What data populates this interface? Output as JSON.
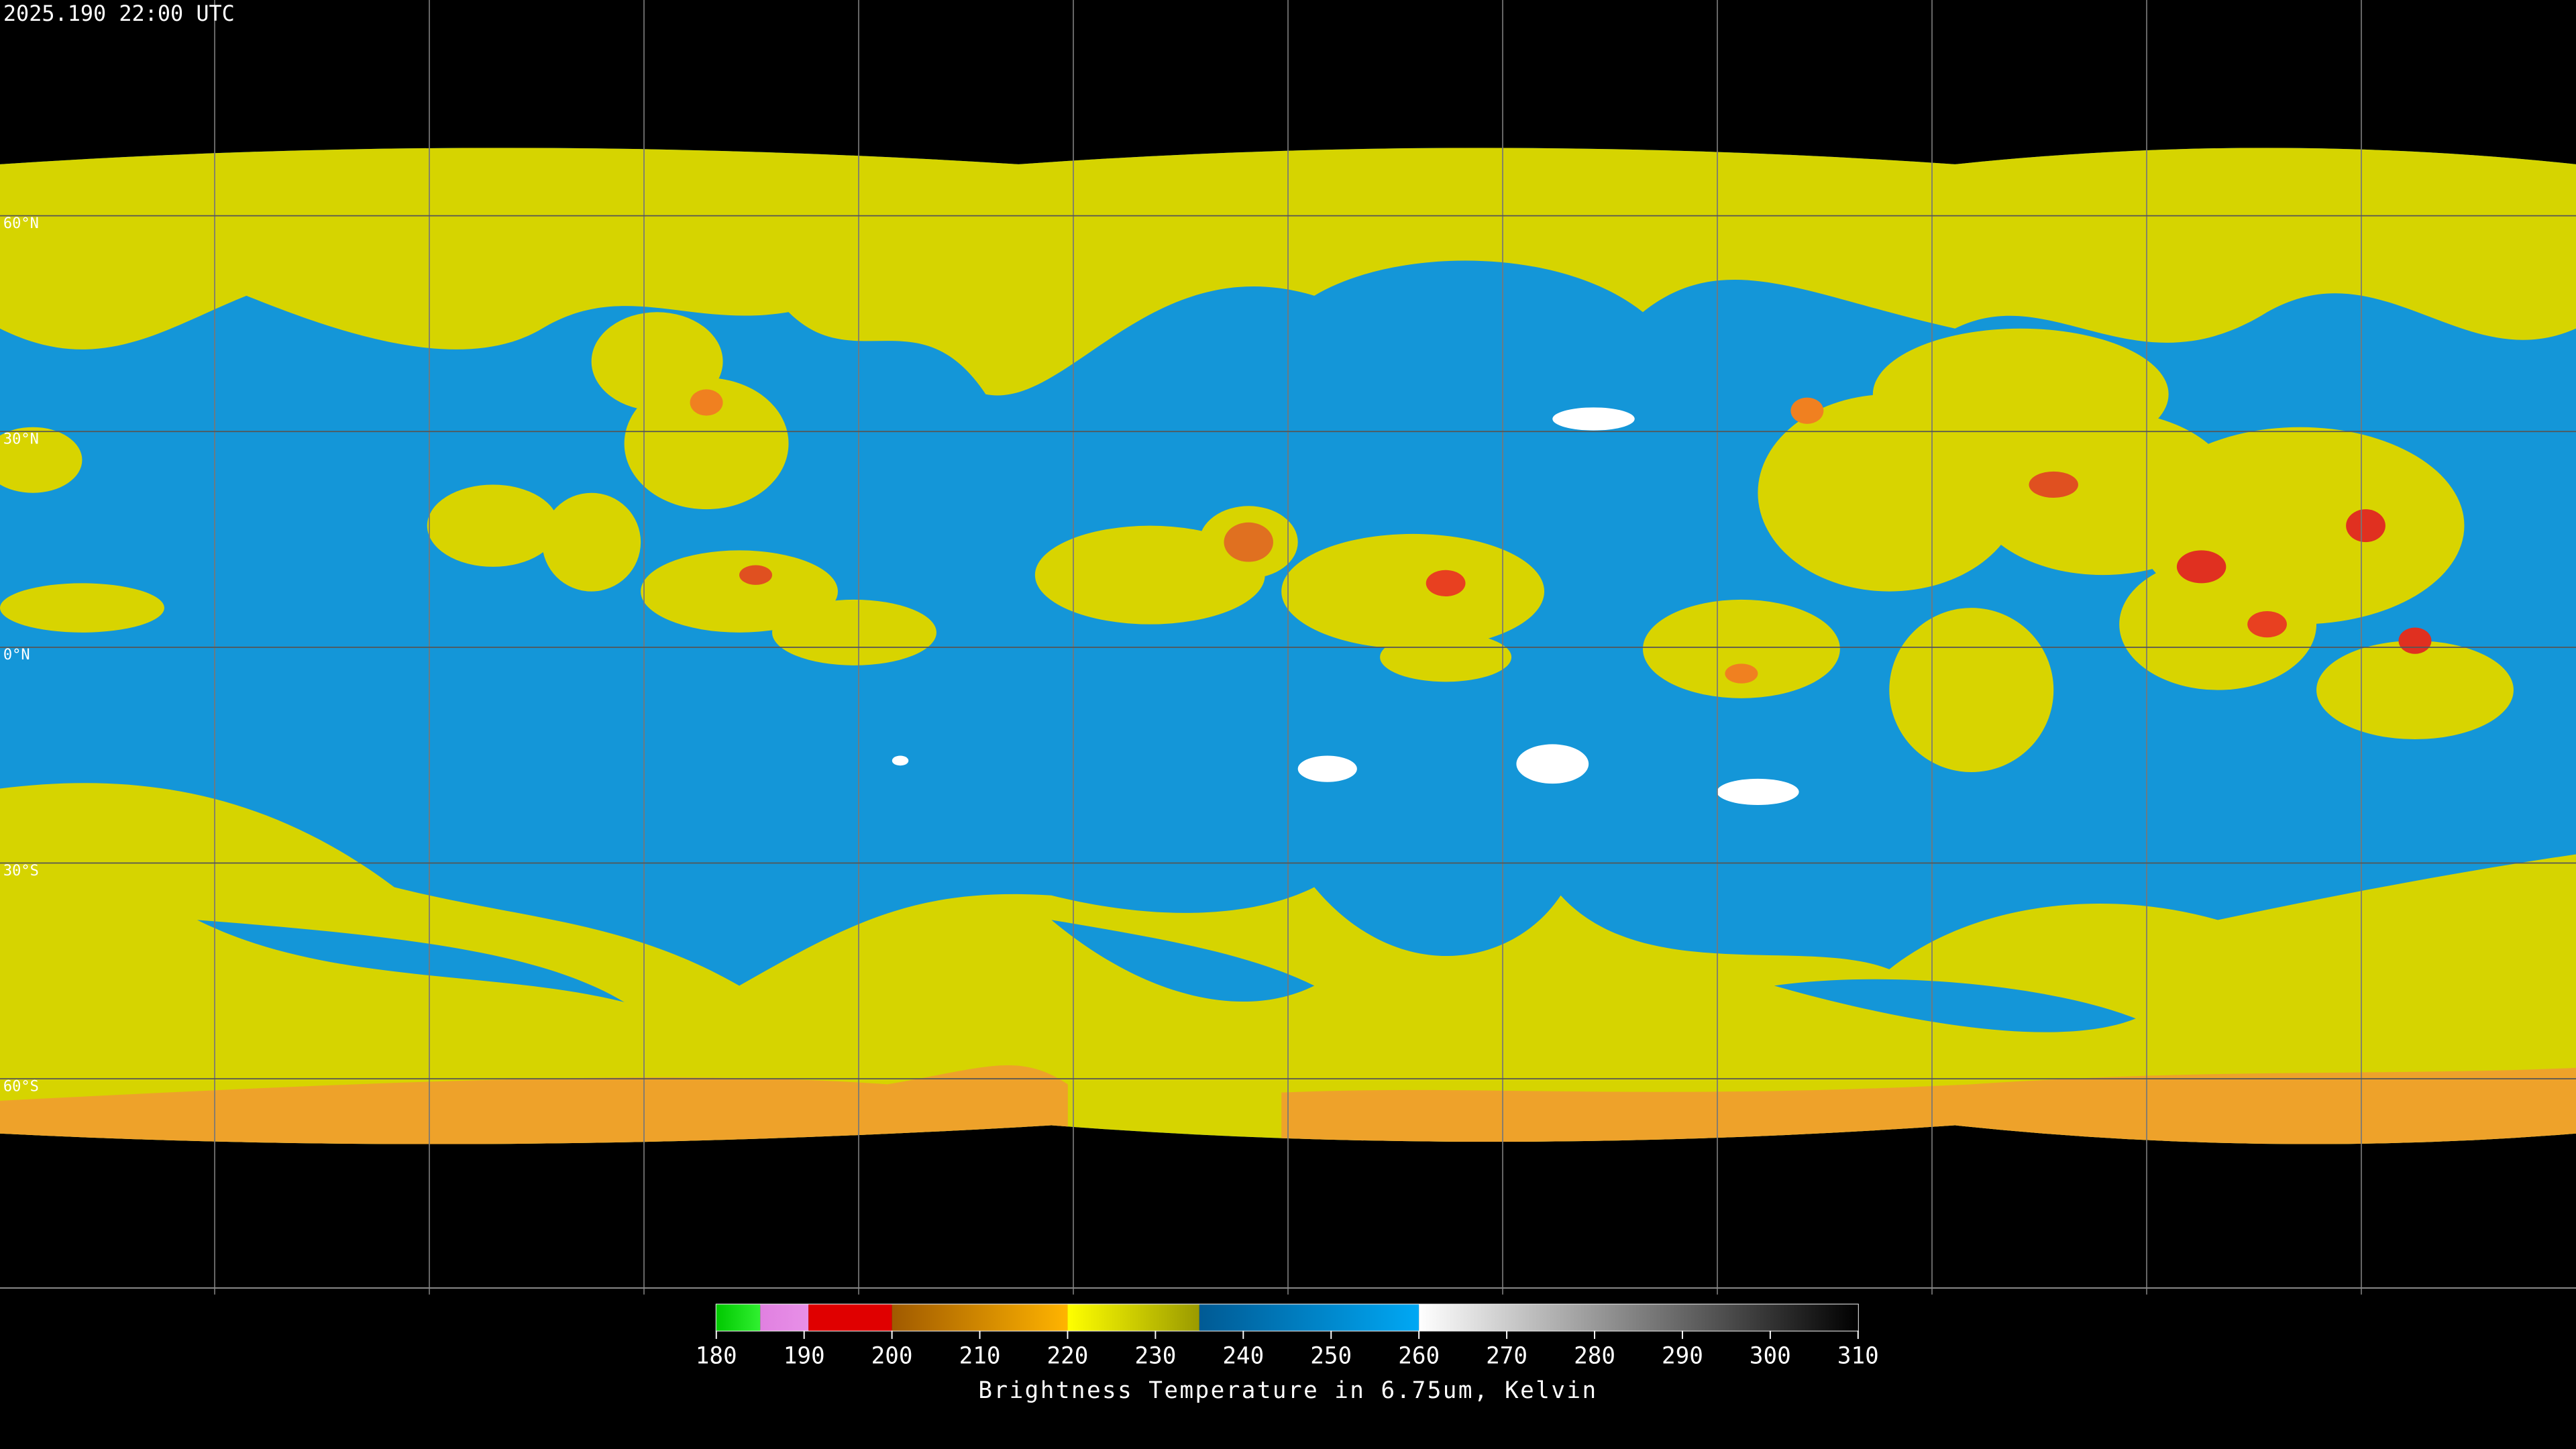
{
  "header": {
    "timestamp": "2025.190 22:00 UTC"
  },
  "map": {
    "lat_labels": [
      "60°N",
      "30°N",
      "0°N",
      "30°S",
      "60°S"
    ]
  },
  "colorbar": {
    "ticks": [
      180,
      190,
      200,
      210,
      220,
      230,
      240,
      250,
      260,
      270,
      280,
      290,
      300,
      310
    ],
    "segments": [
      {
        "from": 180,
        "to": 185,
        "colors": [
          "#00c800",
          "#30f030"
        ]
      },
      {
        "from": 185,
        "to": 190.5,
        "colors": [
          "#e080e0",
          "#e890e8"
        ]
      },
      {
        "from": 190.5,
        "to": 200,
        "colors": [
          "#e00000",
          "#e00000"
        ]
      },
      {
        "from": 200,
        "to": 220,
        "colors": [
          "#a05a00",
          "#ffb400"
        ]
      },
      {
        "from": 220,
        "to": 235,
        "colors": [
          "#ffff00",
          "#9a9a00"
        ]
      },
      {
        "from": 235,
        "to": 260,
        "colors": [
          "#005a94",
          "#00a8f4"
        ]
      },
      {
        "from": 260,
        "to": 310,
        "colors": [
          "#ffffff",
          "#000000"
        ]
      }
    ],
    "label": "Brightness Temperature in 6.75um, Kelvin"
  }
}
